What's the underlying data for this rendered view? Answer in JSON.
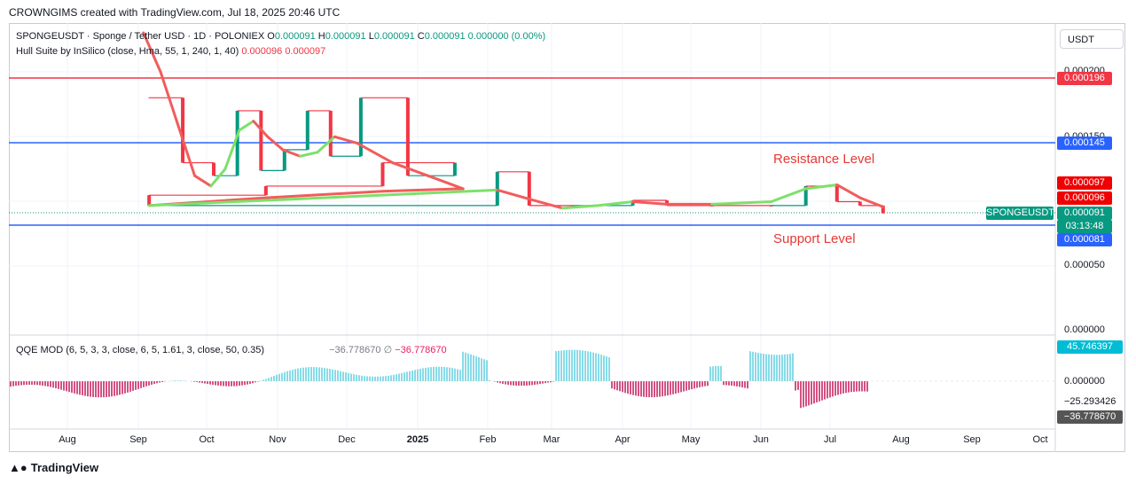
{
  "header": "CROWNGIMS created with TradingView.com, Jul 18, 2025 20:46 UTC",
  "legend1": {
    "symbol": "SPONGEUSDT · Sponge / Tether USD · 1D · POLONIEX",
    "o_label": "O",
    "o": "0.000091",
    "h_label": "H",
    "h": "0.000091",
    "l_label": "L",
    "l": "0.000091",
    "c_label": "C",
    "c": "0.000091",
    "change": "0.000000 (0.00%)"
  },
  "legend2": {
    "name": "Hull Suite by InSilico (close, Hma, 55, 1, 240, 1, 40)",
    "v1": "0.000096",
    "v2": "0.000097"
  },
  "legend3": {
    "name": "QQE MOD (6, 5, 3, 3, close, 6, 5, 1.61, 3, close, 50, 0.35)",
    "v1": "−36.778670",
    "sym": "∅",
    "v2": "−36.778670"
  },
  "unit": "USDT",
  "annotations": {
    "resistance": "Resistance Level",
    "support": "Support Level"
  },
  "tags": {
    "r196": "0.000196",
    "r145": "0.000145",
    "p97": "0.000097",
    "p96": "0.000096",
    "ticker": "SPONGEUSDT",
    "p91": "0.000091",
    "countdown": "03:13:48",
    "s81": "0.000081",
    "q_top": "45.746397",
    "q_bot": "−36.778670"
  },
  "yaxis_main": [
    "0.000200",
    "0.000150",
    "0.000050",
    "0.000000"
  ],
  "yaxis_osc": [
    "0.000000",
    "−25.293426"
  ],
  "footer": "TradingView",
  "colors": {
    "up": "#089981",
    "down": "#f23645",
    "resistance": "#f23645",
    "support": "#2962ff",
    "hull_up": "#7ee06a",
    "hull_down": "#f25c5c",
    "qqe_pos": "#5fcfe0",
    "qqe_neg": "#c2185b"
  },
  "chart_data": {
    "type": "line",
    "x_ticks": [
      "Aug",
      "Sep",
      "Oct",
      "Nov",
      "Dec",
      "2025",
      "Feb",
      "Mar",
      "Apr",
      "May",
      "Jun",
      "Jul",
      "Aug",
      "Sep",
      "Oct"
    ],
    "ylim": [
      0,
      0.00022
    ],
    "levels": {
      "resistance_upper": 0.000196,
      "resistance_lower": 0.000145,
      "support": 8.1e-05,
      "last": 9.1e-05
    },
    "hull_series": [
      [
        "Sep",
        0.00023
      ],
      [
        "Sep",
        0.0002
      ],
      [
        "Sep",
        0.00016
      ],
      [
        "Sep",
        0.00012
      ],
      [
        "Oct",
        0.000112
      ],
      [
        "Oct",
        0.000125
      ],
      [
        "Oct",
        0.000155
      ],
      [
        "Oct",
        0.000162
      ],
      [
        "Oct",
        0.00015
      ],
      [
        "Nov",
        0.00014
      ],
      [
        "Nov",
        0.000135
      ],
      [
        "Nov",
        0.000138
      ],
      [
        "Nov",
        0.00015
      ],
      [
        "Dec",
        0.000145
      ],
      [
        "Dec",
        0.00013
      ],
      [
        "Dec",
        0.00012
      ],
      [
        "Dec",
        0.00011
      ],
      [
        "2025",
        0.000108
      ],
      [
        "2025",
        0.000103
      ],
      [
        "2025",
        9.7e-05
      ],
      [
        "Feb",
        0.000109
      ],
      [
        "Feb",
        0.000102
      ],
      [
        "Mar",
        9.5e-05
      ],
      [
        "Mar",
        9.7e-05
      ],
      [
        "Apr",
        0.0001
      ],
      [
        "Apr",
        9.8e-05
      ],
      [
        "May",
        9.8e-05
      ],
      [
        "Jun",
        0.0001
      ],
      [
        "Jun",
        0.00011
      ],
      [
        "Jul",
        0.000113
      ],
      [
        "Jul",
        0.000103
      ],
      [
        "Jul",
        9.6e-05
      ]
    ],
    "price_steps": [
      [
        "Sep",
        0.00018
      ],
      [
        "Sep",
        0.00013
      ],
      [
        "Oct",
        0.00012
      ],
      [
        "Oct",
        0.00017
      ],
      [
        "Oct",
        0.000124
      ],
      [
        "Nov",
        0.00014
      ],
      [
        "Nov",
        0.00017
      ],
      [
        "Nov",
        0.000135
      ],
      [
        "Dec",
        0.00018
      ],
      [
        "Dec",
        0.00012
      ],
      [
        "Dec",
        0.00013
      ],
      [
        "2025",
        0.000112
      ],
      [
        "2025",
        0.000105
      ],
      [
        "2025",
        9.7e-05
      ],
      [
        "Feb",
        0.000123
      ],
      [
        "Feb",
        9.7e-05
      ],
      [
        "Mar",
        9.7e-05
      ],
      [
        "Apr",
        0.000101
      ],
      [
        "Apr",
        9.7e-05
      ],
      [
        "May",
        9.7e-05
      ],
      [
        "Jun",
        9.7e-05
      ],
      [
        "Jun",
        0.000112
      ],
      [
        "Jul",
        0.0001
      ],
      [
        "Jul",
        9.7e-05
      ],
      [
        "Jul",
        9.1e-05
      ]
    ],
    "qqe": {
      "ylim": [
        -40,
        46
      ],
      "top": 45.746397,
      "bottom": -36.77867
    }
  }
}
